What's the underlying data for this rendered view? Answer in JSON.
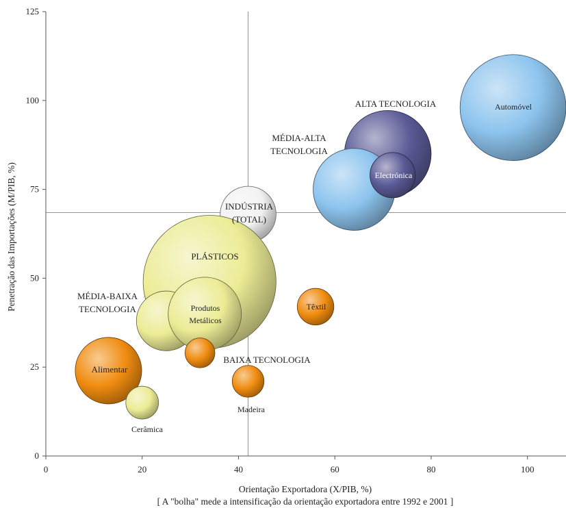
{
  "chart_data": {
    "type": "scatter",
    "subtype": "bubble",
    "xlabel": "Orientação Exportadora (X/PIB, %)",
    "ylabel": "Penetração das Importações (M/PIB, %)",
    "note": "[ A \"bolha\" mede a intensificação da orientação exportadora entre 1992 e 2001 ]",
    "xlim": [
      0,
      108
    ],
    "ylim": [
      0,
      125
    ],
    "x_ticks": [
      0,
      20,
      40,
      60,
      80,
      100
    ],
    "y_ticks": [
      0,
      25,
      50,
      75,
      100,
      125
    ],
    "reference_lines": {
      "x": 42,
      "y": 68.5
    },
    "grid": false,
    "legend": "none",
    "colors": {
      "light_blue": "#8dc4ee",
      "dark_purple": "#5a5a96",
      "white": "#f2f2f2",
      "yellow": "#ecec96",
      "orange": "#f08c10"
    },
    "bubbles": [
      {
        "label": "ALTA TECNOLOGIA",
        "x": 71,
        "y": 85,
        "radius": 9,
        "color": "dark_purple"
      },
      {
        "label": "MÉDIA-ALTA TECNOLOGIA",
        "x": 64,
        "y": 75,
        "radius": 8.5,
        "color": "light_blue"
      },
      {
        "label": "Electrónica",
        "x": 72,
        "y": 79,
        "radius": 4.7,
        "color": "dark_purple"
      },
      {
        "label": "Automóvel",
        "x": 97,
        "y": 98,
        "radius": 11,
        "color": "light_blue"
      },
      {
        "label": "INDÚSTRIA (TOTAL)",
        "x": 42,
        "y": 68,
        "radius": 5.8,
        "color": "white"
      },
      {
        "label": "PLÁSTICOS",
        "x": 34,
        "y": 49,
        "radius": 13.8,
        "color": "yellow"
      },
      {
        "label": "MÉDIA-BAIXA TECNOLOGIA",
        "x": 25,
        "y": 38,
        "radius": 6.2,
        "color": "yellow"
      },
      {
        "label": "Produtos Metálicos",
        "x": 33,
        "y": 40,
        "radius": 7.6,
        "color": "yellow"
      },
      {
        "label": "Têxtil",
        "x": 56,
        "y": 42,
        "radius": 3.8,
        "color": "orange"
      },
      {
        "label": "BAIXA TECNOLOGIA",
        "x": 32,
        "y": 29,
        "radius": 3.1,
        "color": "orange"
      },
      {
        "label": "Madeira",
        "x": 42,
        "y": 21,
        "radius": 3.3,
        "color": "orange"
      },
      {
        "label": "Alimentar",
        "x": 13,
        "y": 24,
        "radius": 6.9,
        "color": "orange"
      },
      {
        "label": "Cerâmica",
        "x": 20,
        "y": 15,
        "radius": 3.4,
        "color": "yellow"
      }
    ],
    "labels": {
      "alta_tecnologia": "ALTA TECNOLOGIA",
      "media_alta_1": "MÉDIA-ALTA",
      "media_alta_2": "TECNOLOGIA",
      "automovel": "Automóvel",
      "electronica": "Electrónica",
      "industria_1": "INDÚSTRIA",
      "industria_2": "(TOTAL)",
      "plasticos": "PLÁSTICOS",
      "media_baixa_1": "MÉDIA-BAIXA",
      "media_baixa_2": "TECNOLOGIA",
      "produtos_1": "Produtos",
      "produtos_2": "Metálicos",
      "textil": "Têxtil",
      "baixa_tecnologia": "BAIXA TECNOLOGIA",
      "alimentar": "Alimentar",
      "madeira": "Madeira",
      "ceramica": "Cerâmica"
    }
  }
}
